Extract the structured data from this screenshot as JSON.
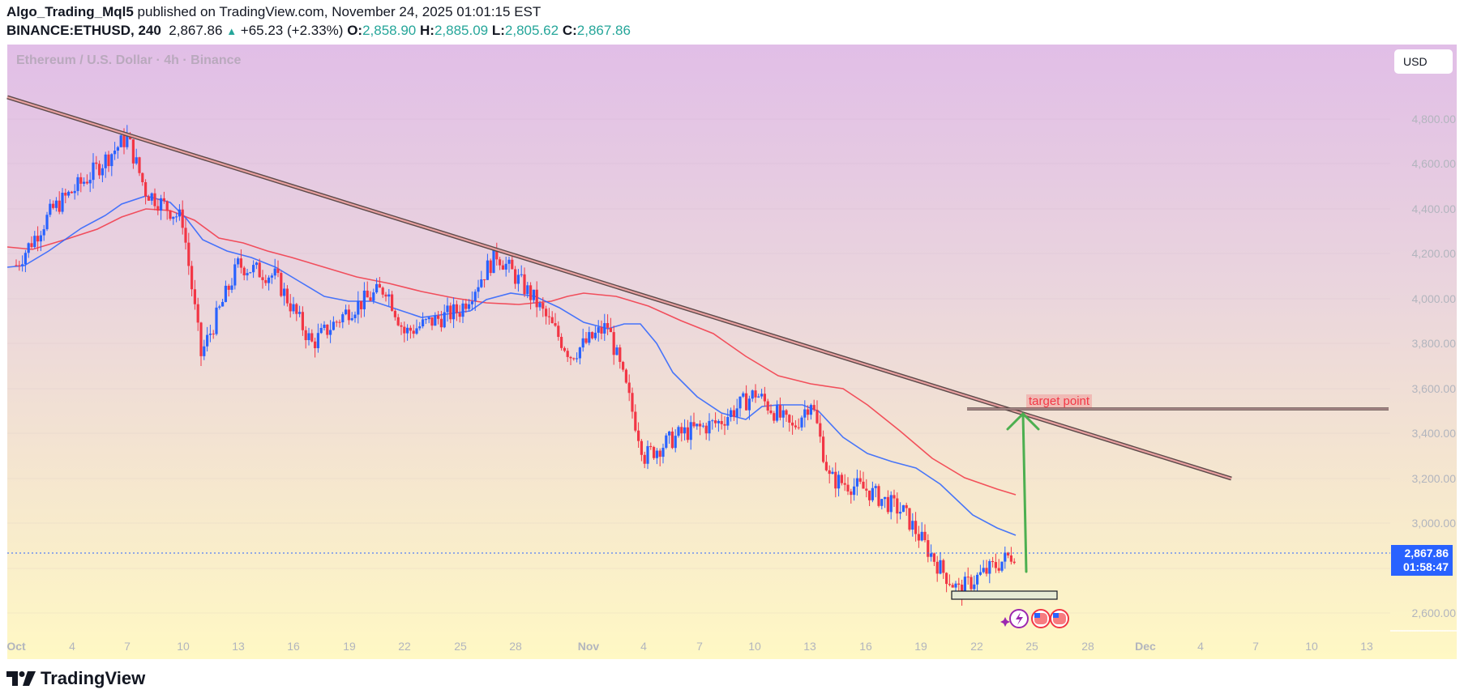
{
  "header": {
    "author": "Algo_Trading_Mql5",
    "published_text": "published on TradingView.com, November 24, 2025 01:01:15 EST",
    "symbol": "BINANCE:ETHUSD, 240",
    "last": "2,867.86",
    "change_icon": "triangle-up-icon",
    "change": "+65.23 (+2.33%)",
    "open_label": "O:",
    "open": "2,858.90",
    "high_label": "H:",
    "high": "2,885.09",
    "low_label": "L:",
    "low": "2,805.62",
    "close_label": "C:",
    "close": "2,867.86"
  },
  "chart": {
    "legend_title": "Ethereum / U.S. Dollar · 4h · Binance",
    "currency_button": "USD",
    "price_tag": {
      "price": "2,867.86",
      "countdown": "01:58:47"
    },
    "annotation_label": "target point",
    "colors": {
      "up_candle": "#2962ff",
      "down_candle": "#f23645",
      "ma_fast": "#2962ff",
      "ma_slow": "#f23645",
      "trendline": "#e8a0a0",
      "target_arrow": "#4caf50",
      "price_tag_bg": "#2962ff"
    }
  },
  "footer": {
    "brand": "TradingView"
  },
  "chart_data": {
    "type": "candlestick",
    "title": "Ethereum / U.S. Dollar · 4h · Binance",
    "symbol": "BINANCE:ETHUSD",
    "timeframe": "4h",
    "y_ticks": [
      "4,800.00",
      "4,600.00",
      "4,400.00",
      "4,200.00",
      "4,000.00",
      "3,800.00",
      "3,600.00",
      "3,400.00",
      "3,200.00",
      "3,000.00",
      "2,600.00"
    ],
    "x_ticks": [
      "Oct",
      "4",
      "7",
      "10",
      "13",
      "16",
      "19",
      "22",
      "25",
      "28",
      "Nov",
      "4",
      "7",
      "10",
      "13",
      "16",
      "19",
      "22",
      "25",
      "28",
      "Dec",
      "4",
      "7",
      "10",
      "13"
    ],
    "ylim": [
      2550,
      4950
    ],
    "approx_close_path": [
      {
        "date": "Oct 1",
        "price": 4150
      },
      {
        "date": "Oct 3",
        "price": 4400
      },
      {
        "date": "Oct 5",
        "price": 4550
      },
      {
        "date": "Oct 7",
        "price": 4720
      },
      {
        "date": "Oct 8",
        "price": 4480
      },
      {
        "date": "Oct 10",
        "price": 4350
      },
      {
        "date": "Oct 11",
        "price": 3750
      },
      {
        "date": "Oct 13",
        "price": 4150
      },
      {
        "date": "Oct 15",
        "price": 4100
      },
      {
        "date": "Oct 17",
        "price": 3800
      },
      {
        "date": "Oct 19",
        "price": 3950
      },
      {
        "date": "Oct 21",
        "price": 4050
      },
      {
        "date": "Oct 22",
        "price": 3850
      },
      {
        "date": "Oct 25",
        "price": 3950
      },
      {
        "date": "Oct 27",
        "price": 4200
      },
      {
        "date": "Oct 29",
        "price": 4000
      },
      {
        "date": "Oct 31",
        "price": 3750
      },
      {
        "date": "Nov 2",
        "price": 3880
      },
      {
        "date": "Nov 3",
        "price": 3600
      },
      {
        "date": "Nov 4",
        "price": 3300
      },
      {
        "date": "Nov 6",
        "price": 3400
      },
      {
        "date": "Nov 8",
        "price": 3450
      },
      {
        "date": "Nov 10",
        "price": 3580
      },
      {
        "date": "Nov 12",
        "price": 3420
      },
      {
        "date": "Nov 13",
        "price": 3550
      },
      {
        "date": "Nov 14",
        "price": 3200
      },
      {
        "date": "Nov 16",
        "price": 3150
      },
      {
        "date": "Nov 18",
        "price": 3050
      },
      {
        "date": "Nov 20",
        "price": 2800
      },
      {
        "date": "Nov 21",
        "price": 2700
      },
      {
        "date": "Nov 22",
        "price": 2760
      },
      {
        "date": "Nov 24",
        "price": 2867.86
      }
    ],
    "series": [
      {
        "name": "Fast MA (blue)",
        "last_approx": 2945
      },
      {
        "name": "Slow MA (red)",
        "last_approx": 3130
      }
    ],
    "annotations": [
      {
        "type": "trendline",
        "from": {
          "date": "Oct 1",
          "price": 4930
        },
        "to": {
          "date": "Dec 5",
          "price": 3190
        }
      },
      {
        "type": "horizontal_line",
        "price": 3505,
        "label": "target point"
      },
      {
        "type": "arrow",
        "from": {
          "date": "Nov 24",
          "price": 2780
        },
        "to": {
          "date": "Nov 24",
          "price": 3500
        },
        "color": "green"
      },
      {
        "type": "rectangle",
        "price_range": [
          2655,
          2690
        ],
        "date_range": [
          "Nov 20",
          "Nov 26"
        ]
      }
    ],
    "last_price": 2867.86,
    "countdown": "01:58:47"
  }
}
